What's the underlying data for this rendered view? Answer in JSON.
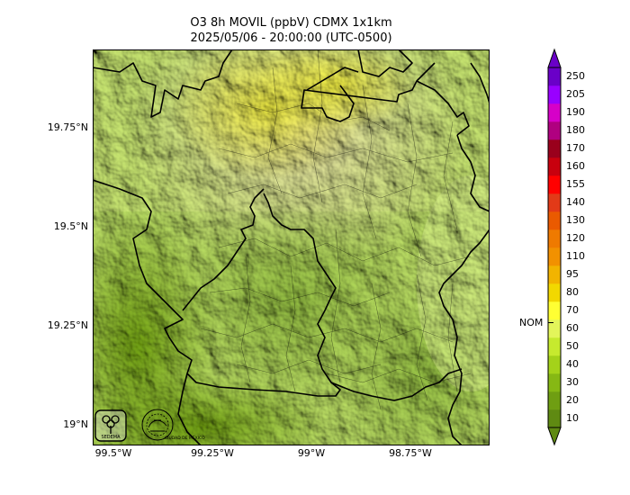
{
  "title": {
    "line1": "O3 8h MOVIL (ppbV) CDMX 1x1km",
    "line2": "2025/05/06 - 20:00:00 (UTC-0500)"
  },
  "axes": {
    "y_labels": [
      "19.75°N",
      "19.5°N",
      "19.25°N",
      "19°N"
    ],
    "x_labels": [
      "99.5°W",
      "99.25°W",
      "99°W",
      "98.75°W"
    ]
  },
  "colorbar": {
    "levels": [
      10,
      20,
      30,
      40,
      50,
      60,
      70,
      80,
      95,
      110,
      120,
      130,
      140,
      155,
      160,
      170,
      180,
      190,
      205,
      250
    ],
    "colors": [
      "#5f8a12",
      "#6f9e12",
      "#86b814",
      "#a4d21a",
      "#c6ea2e",
      "#e3f55a",
      "#ffff33",
      "#f2d800",
      "#f2b400",
      "#f29100",
      "#ef7a00",
      "#ea5a00",
      "#e23a18",
      "#ff0000",
      "#c8000e",
      "#99001c",
      "#b00080",
      "#d600c8",
      "#9900ff",
      "#6a00c8"
    ],
    "nom_label": "NOM",
    "nom_value": 65
  },
  "logos": {
    "logo1_text": "SEDEMA",
    "logo2_text": "CIUDAD DE MÉXICO"
  }
}
